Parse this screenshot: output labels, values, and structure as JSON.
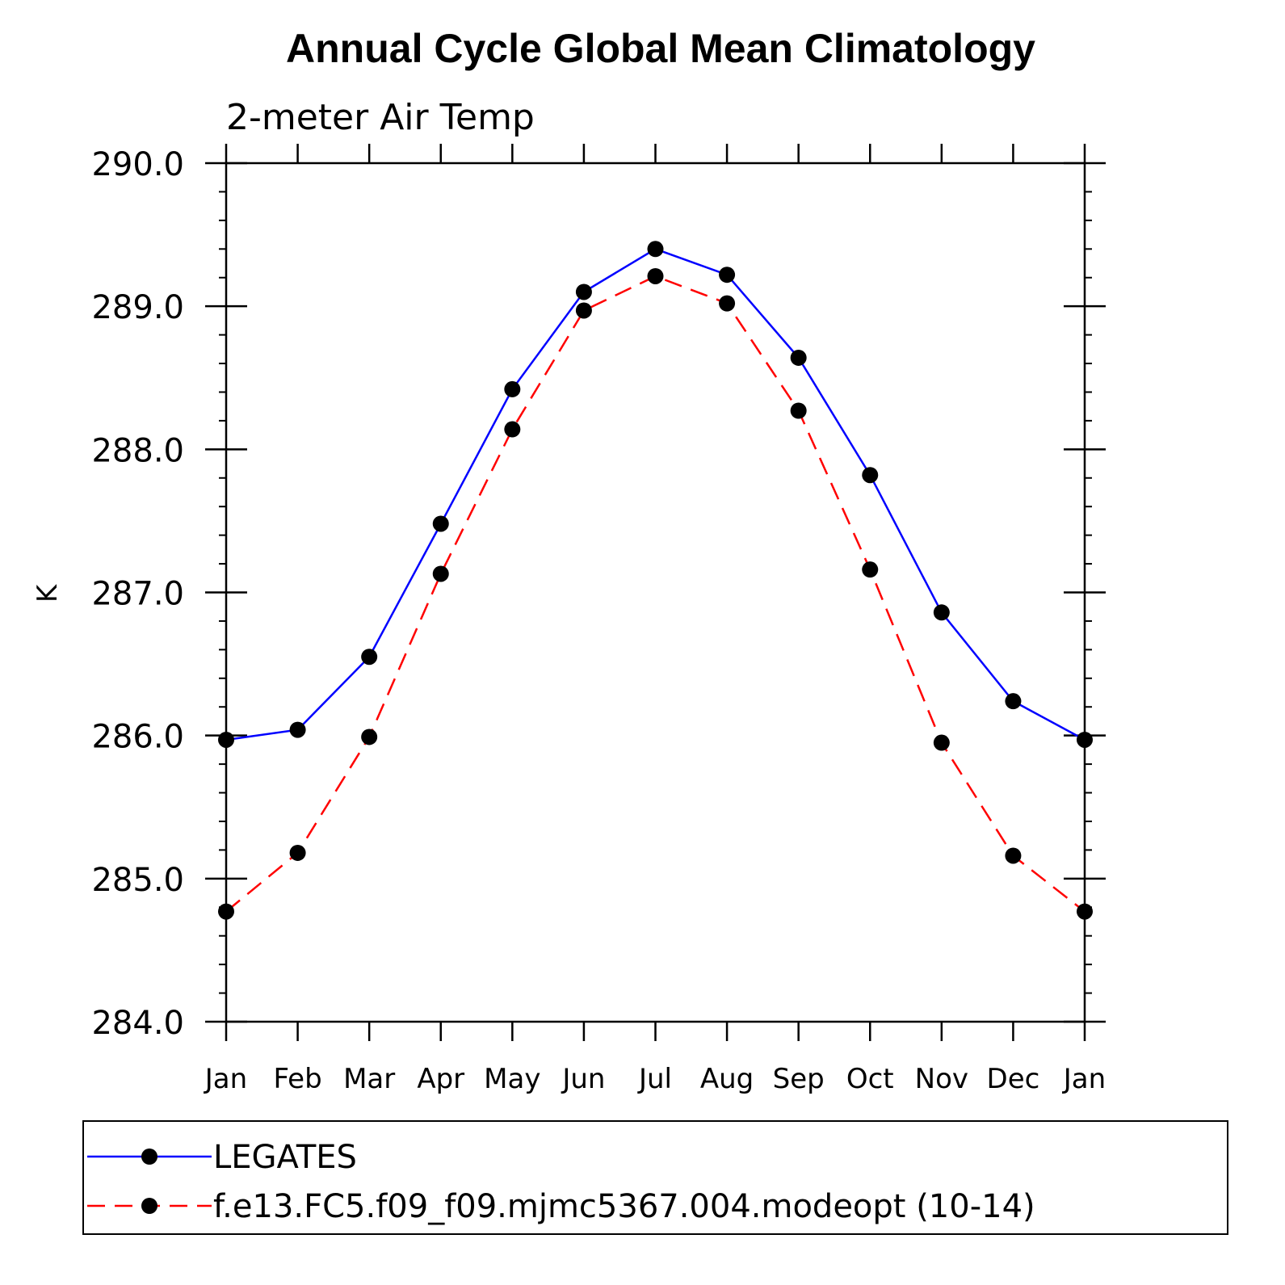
{
  "chart_data": {
    "type": "line",
    "title": "Annual Cycle Global Mean Climatology",
    "subtitle": "2-meter Air Temp",
    "ylabel": "K",
    "xlabel": "",
    "categories": [
      "Jan",
      "Feb",
      "Mar",
      "Apr",
      "May",
      "Jun",
      "Jul",
      "Aug",
      "Sep",
      "Oct",
      "Nov",
      "Dec",
      "Jan"
    ],
    "ylim": [
      284.0,
      290.0
    ],
    "yticks": [
      "284.0",
      "285.0",
      "286.0",
      "287.0",
      "288.0",
      "289.0",
      "290.0"
    ],
    "yminor_step": 0.2,
    "grid": false,
    "legend_position": "bottom",
    "series": [
      {
        "name": "LEGATES",
        "color": "#0000ff",
        "line_style": "solid",
        "marker": "filled-circle",
        "values": [
          285.97,
          286.04,
          286.55,
          287.48,
          288.42,
          289.1,
          289.4,
          289.22,
          288.64,
          287.82,
          286.86,
          286.24,
          285.97
        ]
      },
      {
        "name": "f.e13.FC5.f09_f09.mjmc5367.004.modeopt (10-14)",
        "color": "#ff0000",
        "line_style": "dashed",
        "marker": "filled-circle",
        "values": [
          284.77,
          285.18,
          285.99,
          287.13,
          288.14,
          288.97,
          289.21,
          289.02,
          288.27,
          287.16,
          285.95,
          285.16,
          284.77
        ]
      }
    ]
  }
}
